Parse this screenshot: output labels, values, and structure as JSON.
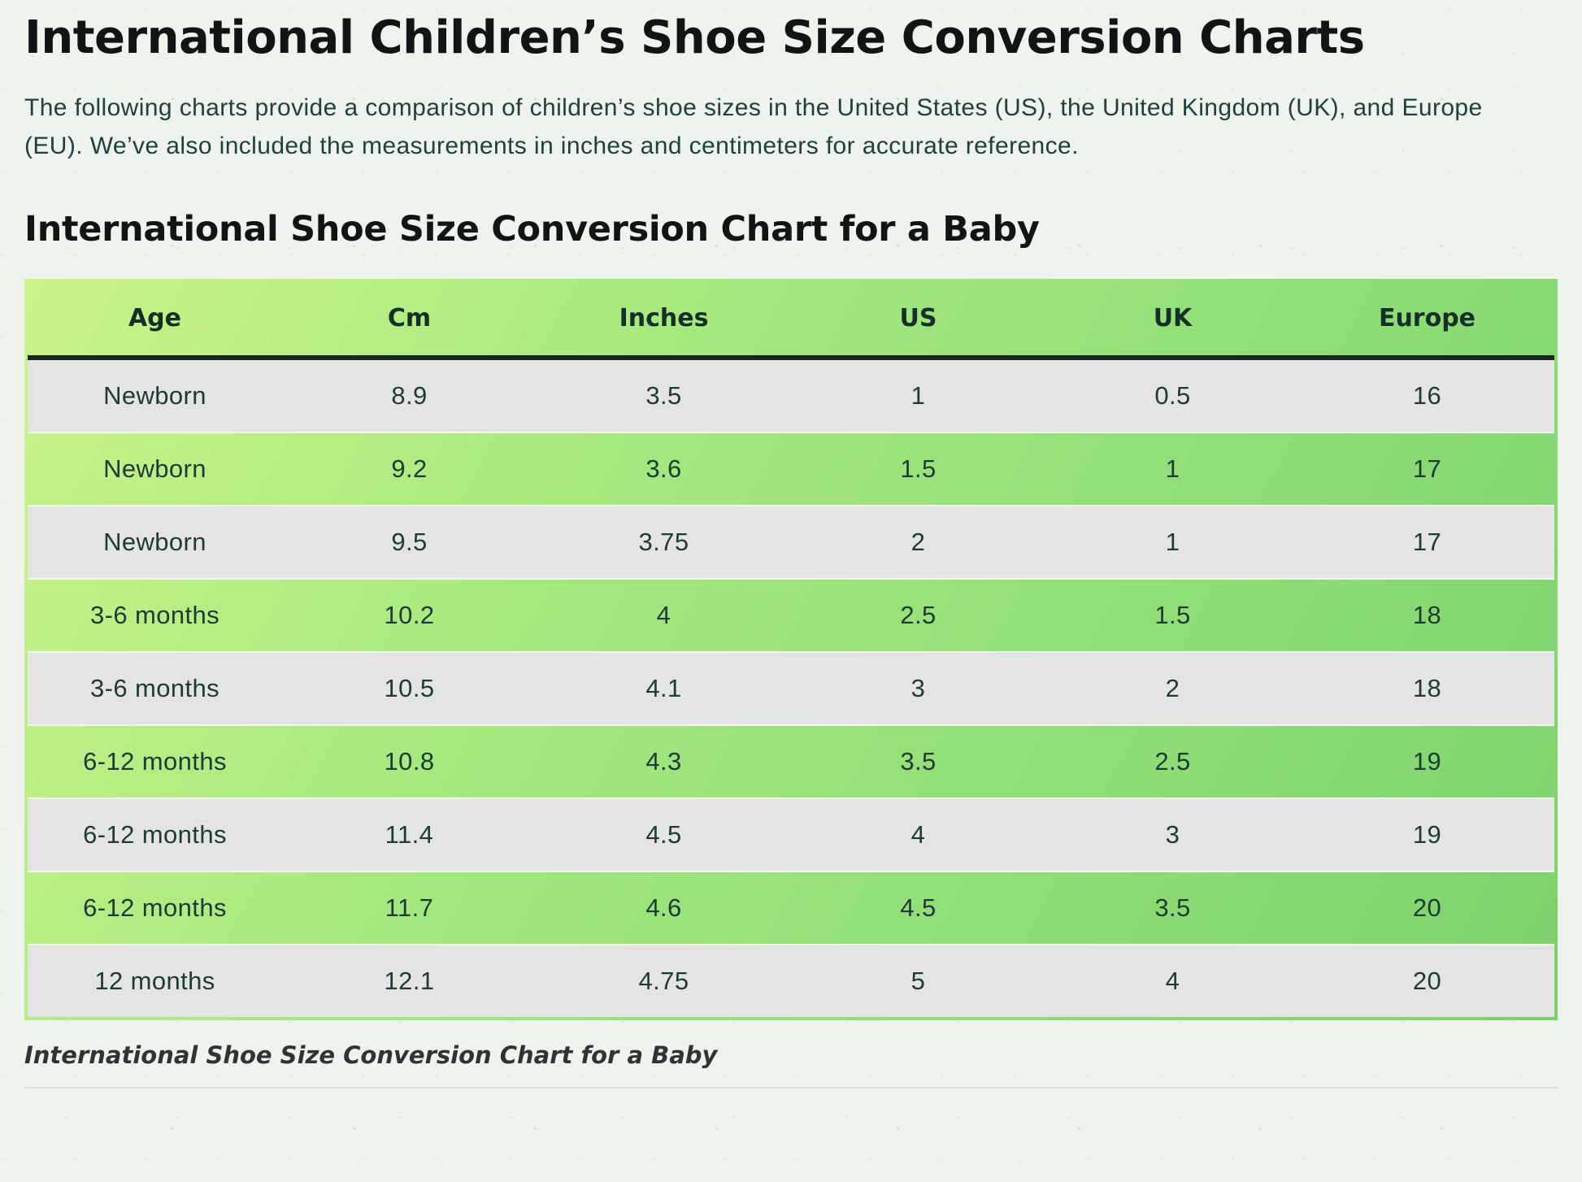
{
  "page": {
    "title": "International Children’s Shoe Size Conversion Charts",
    "intro": "The following charts provide a comparison of children’s shoe sizes in the United States (US), the United Kingdom (UK), and Europe (EU). We’ve also included the measurements in inches and centimeters for accurate reference.",
    "section_heading": "International Shoe Size Conversion Chart for a Baby",
    "caption": "International Shoe Size Conversion Chart for a Baby"
  },
  "table": {
    "columns": [
      "Age",
      "Cm",
      "Inches",
      "US",
      "UK",
      "Europe"
    ],
    "rows": [
      {
        "style": "gray",
        "cells": [
          "Newborn",
          "8.9",
          "3.5",
          "1",
          "0.5",
          "16"
        ]
      },
      {
        "style": "green",
        "cells": [
          "Newborn",
          "9.2",
          "3.6",
          "1.5",
          "1",
          "17"
        ]
      },
      {
        "style": "gray",
        "cells": [
          "Newborn",
          "9.5",
          "3.75",
          "2",
          "1",
          "17"
        ]
      },
      {
        "style": "green",
        "cells": [
          "3-6 months",
          "10.2",
          "4",
          "2.5",
          "1.5",
          "18"
        ]
      },
      {
        "style": "gray",
        "cells": [
          "3-6 months",
          "10.5",
          "4.1",
          "3",
          "2",
          "18"
        ]
      },
      {
        "style": "green",
        "cells": [
          "6-12 months",
          "10.8",
          "4.3",
          "3.5",
          "2.5",
          "19"
        ]
      },
      {
        "style": "gray",
        "cells": [
          "6-12 months",
          "11.4",
          "4.5",
          "4",
          "3",
          "19"
        ]
      },
      {
        "style": "green",
        "cells": [
          "6-12 months",
          "11.7",
          "4.6",
          "4.5",
          "3.5",
          "20"
        ]
      },
      {
        "style": "gray",
        "cells": [
          "12 months",
          "12.1",
          "4.75",
          "5",
          "4",
          "20"
        ]
      }
    ]
  },
  "colors": {
    "page_background": "#eef4ed",
    "table_gradient_start": "#cbf388",
    "table_gradient_end": "#7dd26d",
    "row_gray": "#e5e4e4",
    "header_rule": "#152620",
    "body_text": "#21403d",
    "heading_text": "#101413"
  }
}
